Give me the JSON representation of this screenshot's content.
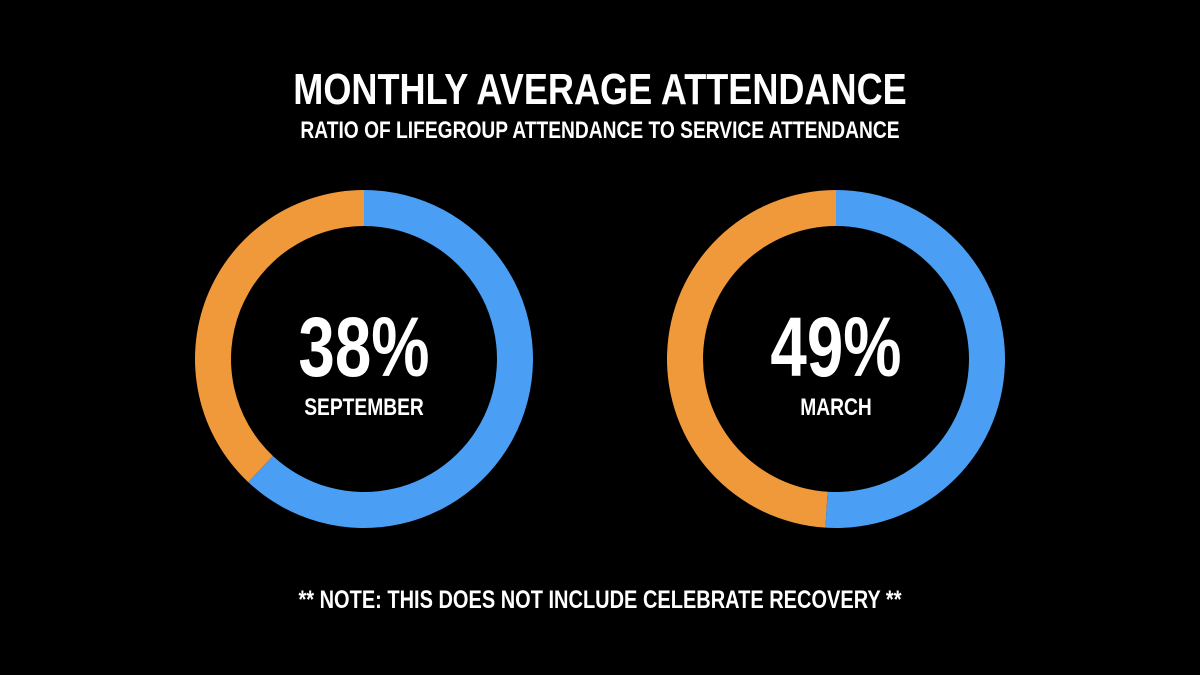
{
  "title": "MONTHLY AVERAGE ATTENDANCE",
  "subtitle": "RATIO OF LIFEGROUP ATTENDANCE TO SERVICE ATTENDANCE",
  "note": "** NOTE: THIS DOES NOT INCLUDE CELEBRATE RECOVERY **",
  "colors": {
    "background": "#000000",
    "text": "#ffffff",
    "lifegroup": "#f0993b",
    "service": "#4a9ff5"
  },
  "chart_data": [
    {
      "type": "pie",
      "style": "donut",
      "center_label": "38%",
      "caption": "SEPTEMBER",
      "slices": [
        {
          "value": 38,
          "color": "#f0993b"
        },
        {
          "value": 62,
          "color": "#4a9ff5"
        }
      ]
    },
    {
      "type": "pie",
      "style": "donut",
      "center_label": "49%",
      "caption": "MARCH",
      "slices": [
        {
          "value": 49,
          "color": "#f0993b"
        },
        {
          "value": 51,
          "color": "#4a9ff5"
        }
      ]
    }
  ]
}
